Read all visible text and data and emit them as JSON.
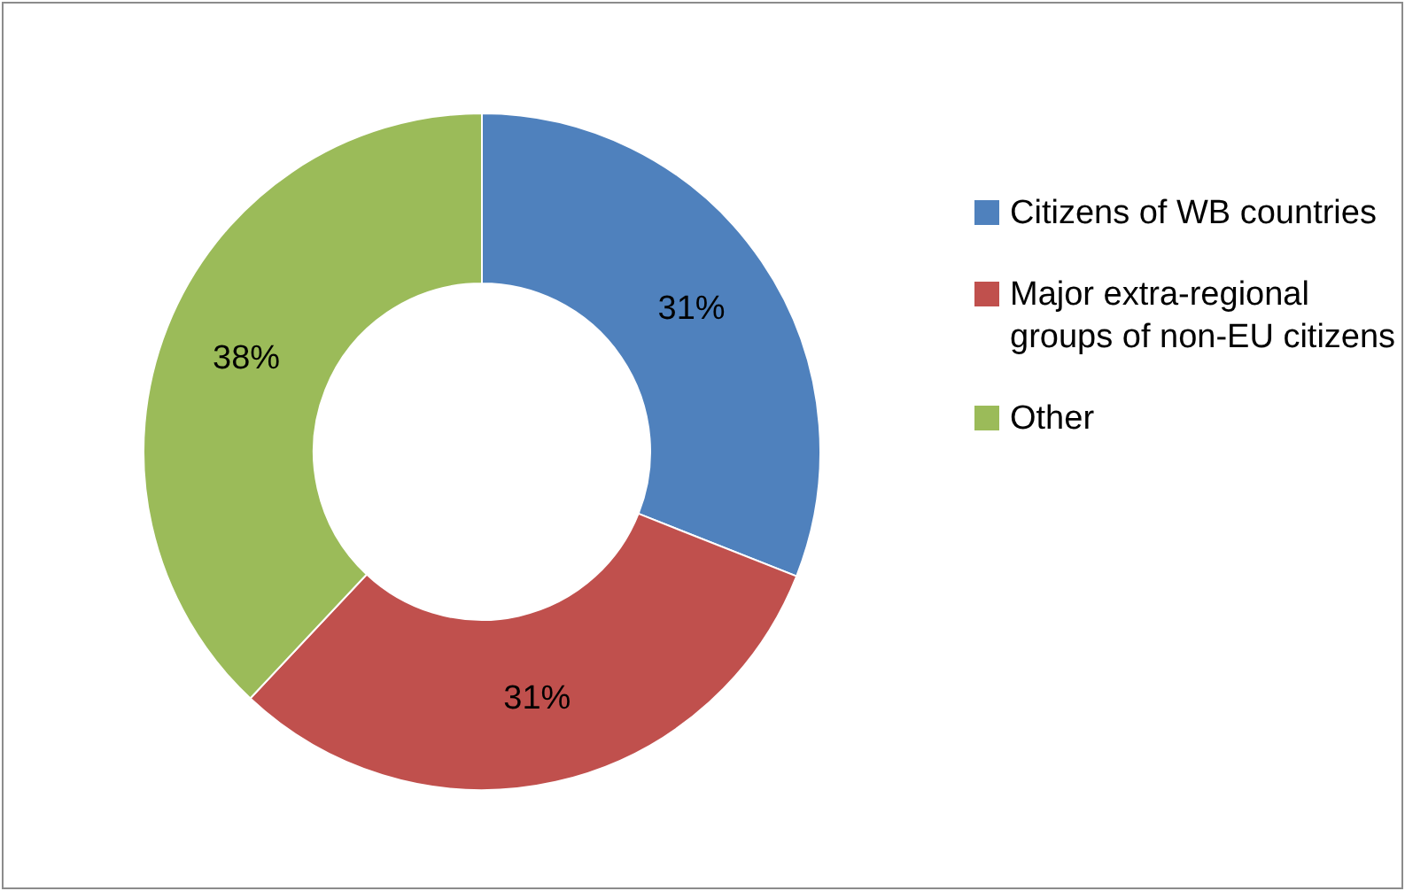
{
  "chart_data": {
    "type": "donut",
    "categories": [
      "Citizens of WB countries",
      "Major extra-regional groups of non-EU citizens",
      "Other"
    ],
    "values": [
      31,
      31,
      38
    ],
    "colors": [
      "#4f81bd",
      "#c0504d",
      "#9bbb59"
    ],
    "value_labels": [
      "31%",
      "31%",
      "38%"
    ],
    "legend": "right"
  }
}
